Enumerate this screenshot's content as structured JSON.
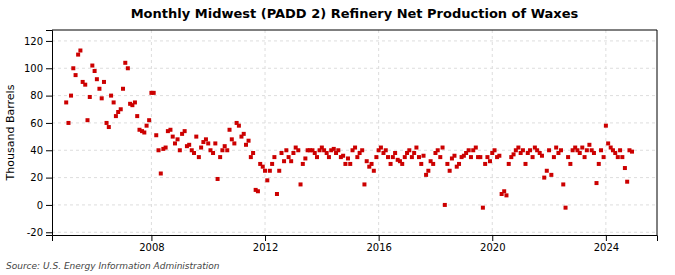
{
  "chart_data": {
    "type": "scatter",
    "title": "Monthly Midwest (PADD 2) Refinery Net Production of Waxes",
    "ylabel": "Thousand Barrels",
    "source": "Source: U.S. Energy Information Administration",
    "color": "#cc0000",
    "marker": "square",
    "grid": true,
    "xlim": [
      2004.5,
      2025.8
    ],
    "ylim": [
      -22,
      128
    ],
    "xticks": [
      2008,
      2012,
      2016,
      2020,
      2024
    ],
    "yticks": [
      -20,
      0,
      20,
      40,
      60,
      80,
      100,
      120
    ],
    "x": [
      2005.0,
      2005.08,
      2005.17,
      2005.25,
      2005.33,
      2005.42,
      2005.5,
      2005.58,
      2005.67,
      2005.75,
      2005.83,
      2005.92,
      2006.0,
      2006.08,
      2006.17,
      2006.25,
      2006.33,
      2006.42,
      2006.5,
      2006.58,
      2006.67,
      2006.75,
      2006.83,
      2006.92,
      2007.0,
      2007.08,
      2007.17,
      2007.25,
      2007.33,
      2007.42,
      2007.5,
      2007.58,
      2007.67,
      2007.75,
      2007.83,
      2007.92,
      2008.0,
      2008.08,
      2008.17,
      2008.25,
      2008.33,
      2008.42,
      2008.5,
      2008.58,
      2008.67,
      2008.75,
      2008.83,
      2008.92,
      2009.0,
      2009.08,
      2009.17,
      2009.25,
      2009.33,
      2009.42,
      2009.5,
      2009.58,
      2009.67,
      2009.75,
      2009.83,
      2009.92,
      2010.0,
      2010.08,
      2010.17,
      2010.25,
      2010.33,
      2010.42,
      2010.5,
      2010.58,
      2010.67,
      2010.75,
      2010.83,
      2010.92,
      2011.0,
      2011.08,
      2011.17,
      2011.25,
      2011.33,
      2011.42,
      2011.5,
      2011.58,
      2011.67,
      2011.75,
      2011.83,
      2011.92,
      2012.0,
      2012.08,
      2012.17,
      2012.25,
      2012.33,
      2012.42,
      2012.5,
      2012.58,
      2012.67,
      2012.75,
      2012.83,
      2012.92,
      2013.0,
      2013.08,
      2013.17,
      2013.25,
      2013.33,
      2013.42,
      2013.5,
      2013.58,
      2013.67,
      2013.75,
      2013.83,
      2013.92,
      2014.0,
      2014.08,
      2014.17,
      2014.25,
      2014.33,
      2014.42,
      2014.5,
      2014.58,
      2014.67,
      2014.75,
      2014.83,
      2014.92,
      2015.0,
      2015.08,
      2015.17,
      2015.25,
      2015.33,
      2015.42,
      2015.5,
      2015.58,
      2015.67,
      2015.75,
      2015.83,
      2015.92,
      2016.0,
      2016.08,
      2016.17,
      2016.25,
      2016.33,
      2016.42,
      2016.5,
      2016.58,
      2016.67,
      2016.75,
      2016.83,
      2016.92,
      2017.0,
      2017.08,
      2017.17,
      2017.25,
      2017.33,
      2017.42,
      2017.5,
      2017.58,
      2017.67,
      2017.75,
      2017.83,
      2017.92,
      2018.0,
      2018.08,
      2018.17,
      2018.25,
      2018.33,
      2018.42,
      2018.5,
      2018.58,
      2018.67,
      2018.75,
      2018.83,
      2018.92,
      2019.0,
      2019.08,
      2019.17,
      2019.25,
      2019.33,
      2019.42,
      2019.5,
      2019.58,
      2019.67,
      2019.75,
      2019.83,
      2019.92,
      2020.0,
      2020.08,
      2020.17,
      2020.25,
      2020.33,
      2020.42,
      2020.5,
      2020.58,
      2020.67,
      2020.75,
      2020.83,
      2020.92,
      2021.0,
      2021.08,
      2021.17,
      2021.25,
      2021.33,
      2021.42,
      2021.5,
      2021.58,
      2021.67,
      2021.75,
      2021.83,
      2021.92,
      2022.0,
      2022.08,
      2022.17,
      2022.25,
      2022.33,
      2022.42,
      2022.5,
      2022.58,
      2022.67,
      2022.75,
      2022.83,
      2022.92,
      2023.0,
      2023.08,
      2023.17,
      2023.25,
      2023.33,
      2023.42,
      2023.5,
      2023.58,
      2023.67,
      2023.75,
      2023.83,
      2023.92,
      2024.0,
      2024.08,
      2024.17,
      2024.25,
      2024.33,
      2024.42,
      2024.5,
      2024.58,
      2024.67,
      2024.75,
      2024.83,
      2024.92
    ],
    "values": [
      75,
      60,
      80,
      100,
      95,
      110,
      113,
      90,
      88,
      62,
      79,
      102,
      98,
      92,
      85,
      78,
      90,
      60,
      57,
      80,
      75,
      65,
      68,
      70,
      85,
      104,
      100,
      74,
      73,
      75,
      65,
      55,
      54,
      53,
      58,
      62,
      82,
      82,
      51,
      40,
      23,
      41,
      42,
      54,
      55,
      50,
      45,
      48,
      40,
      52,
      54,
      43,
      44,
      40,
      38,
      50,
      35,
      42,
      46,
      48,
      45,
      40,
      38,
      45,
      19,
      35,
      40,
      43,
      40,
      55,
      48,
      45,
      60,
      58,
      50,
      52,
      44,
      47,
      35,
      38,
      11,
      10,
      30,
      28,
      25,
      18,
      25,
      30,
      35,
      8,
      25,
      38,
      32,
      40,
      35,
      32,
      38,
      42,
      40,
      15,
      30,
      34,
      40,
      40,
      40,
      38,
      35,
      40,
      42,
      40,
      38,
      35,
      40,
      41,
      38,
      40,
      35,
      36,
      30,
      34,
      30,
      40,
      42,
      35,
      38,
      40,
      15,
      32,
      28,
      30,
      25,
      35,
      40,
      42,
      38,
      40,
      35,
      30,
      35,
      38,
      33,
      32,
      30,
      35,
      38,
      40,
      35,
      38,
      42,
      35,
      30,
      36,
      22,
      25,
      32,
      30,
      38,
      40,
      35,
      42,
      0,
      30,
      25,
      34,
      36,
      28,
      30,
      35,
      36,
      38,
      40,
      35,
      40,
      42,
      35,
      35,
      -2,
      30,
      35,
      32,
      38,
      40,
      35,
      36,
      8,
      10,
      7,
      30,
      35,
      37,
      40,
      42,
      38,
      40,
      30,
      38,
      40,
      35,
      42,
      40,
      38,
      36,
      20,
      25,
      40,
      22,
      35,
      42,
      38,
      40,
      15,
      -2,
      35,
      30,
      40,
      42,
      40,
      38,
      42,
      35,
      40,
      44,
      40,
      38,
      16,
      30,
      40,
      35,
      58,
      45,
      42,
      40,
      38,
      35,
      40,
      35,
      27,
      17,
      40,
      39
    ]
  }
}
